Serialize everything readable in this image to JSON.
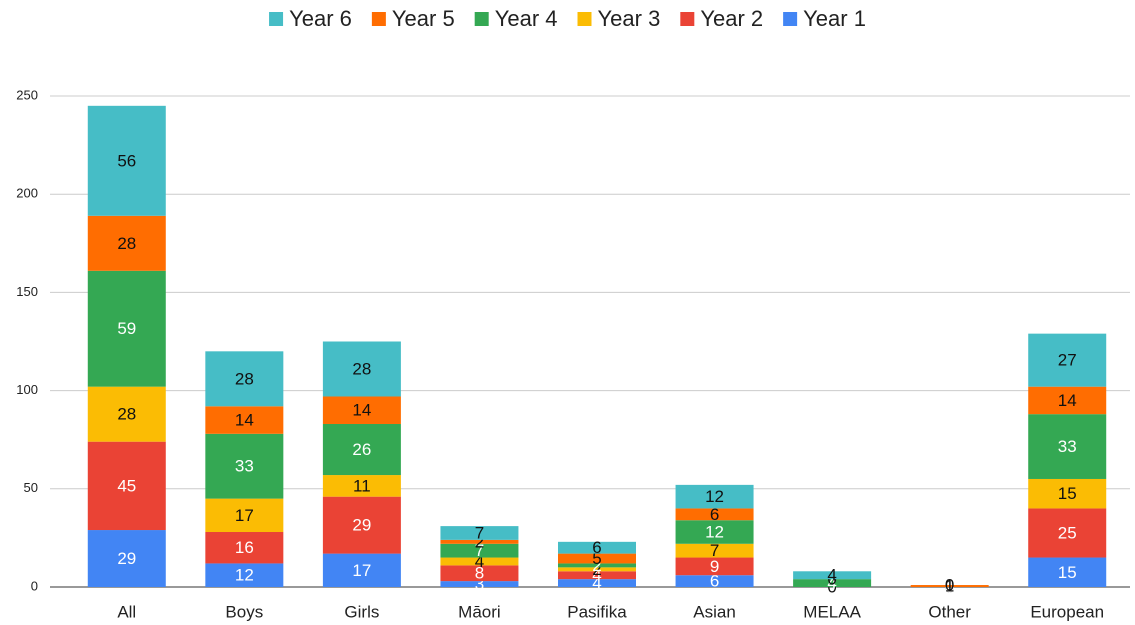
{
  "chart_data": {
    "type": "stacked_bar",
    "categories": [
      "All",
      "Boys",
      "Girls",
      "Māori",
      "Pasifika",
      "Asian",
      "MELAA",
      "Other",
      "European"
    ],
    "series": [
      {
        "name": "Year 1",
        "color": "#4285f4",
        "values": [
          29,
          12,
          17,
          3,
          4,
          6,
          0,
          0,
          15
        ]
      },
      {
        "name": "Year 2",
        "color": "#ea4335",
        "values": [
          45,
          16,
          29,
          8,
          4,
          9,
          0,
          0,
          25
        ]
      },
      {
        "name": "Year 3",
        "color": "#fbbc04",
        "values": [
          28,
          17,
          11,
          4,
          2,
          7,
          0,
          0,
          15
        ]
      },
      {
        "name": "Year 4",
        "color": "#34a853",
        "values": [
          59,
          33,
          26,
          7,
          2,
          12,
          4,
          0,
          33
        ]
      },
      {
        "name": "Year 5",
        "color": "#ff6d01",
        "values": [
          28,
          14,
          14,
          2,
          5,
          6,
          0,
          1,
          14
        ]
      },
      {
        "name": "Year 6",
        "color": "#46bdc6",
        "values": [
          56,
          28,
          28,
          7,
          6,
          12,
          4,
          0,
          27
        ]
      }
    ],
    "ylim": [
      0,
      250
    ],
    "yticks": [
      0,
      50,
      100,
      150,
      200,
      250
    ],
    "grid": true,
    "legend": "top"
  }
}
